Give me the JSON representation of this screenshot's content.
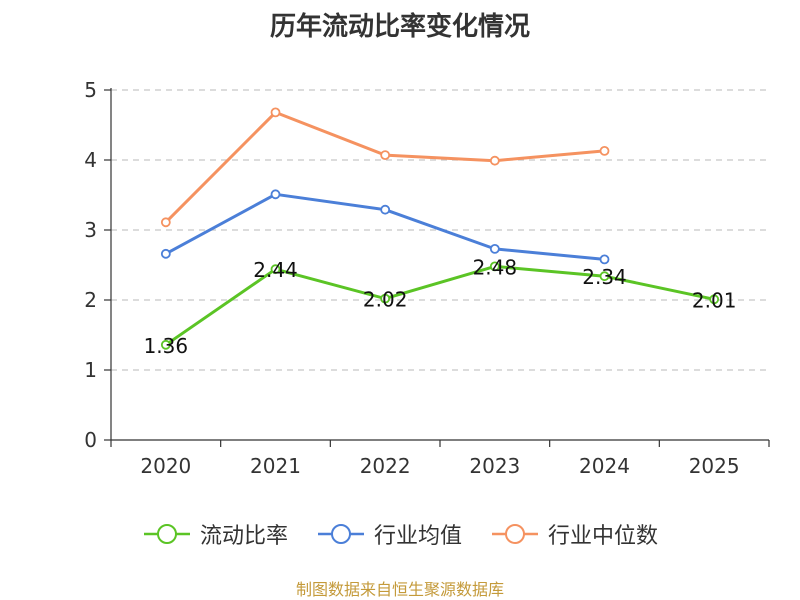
{
  "chart_data": {
    "type": "line",
    "title": "历年流动比率变化情况",
    "categories": [
      "2020",
      "2021",
      "2022",
      "2023",
      "2024",
      "2025"
    ],
    "ylim": [
      0,
      5
    ],
    "yticks": [
      0,
      1,
      2,
      3,
      4,
      5
    ],
    "grid": true,
    "legend_position": "bottom",
    "series": [
      {
        "name": "流动比率",
        "color": "#5bc425",
        "values": [
          1.36,
          2.44,
          2.02,
          2.48,
          2.34,
          2.01
        ],
        "show_labels": true
      },
      {
        "name": "行业均值",
        "color": "#4b7fd8",
        "values": [
          2.66,
          3.51,
          3.29,
          2.73,
          2.58,
          null
        ],
        "show_labels": false
      },
      {
        "name": "行业中位数",
        "color": "#f59260",
        "values": [
          3.11,
          4.68,
          4.07,
          3.99,
          4.13,
          null
        ],
        "show_labels": false
      }
    ],
    "data_labels": [
      "1.36",
      "2.44",
      "2.02",
      "2.48",
      "2.34",
      "2.01"
    ]
  },
  "source_note": "制图数据来自恒生聚源数据库"
}
